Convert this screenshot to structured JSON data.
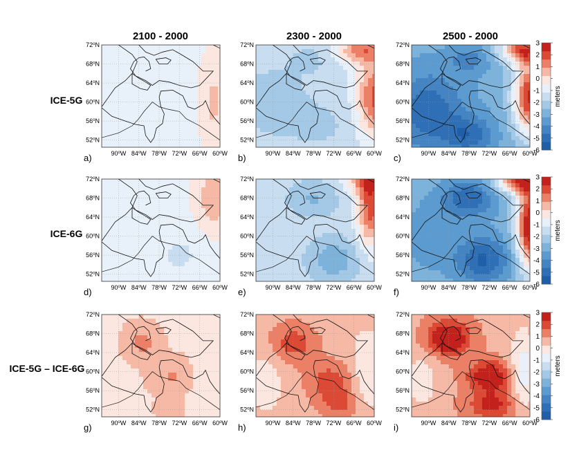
{
  "chart_data": {
    "type": "heatmap",
    "column_titles": [
      "2100 - 2000",
      "2300 - 2000",
      "2500 - 2000"
    ],
    "row_labels": [
      "ICE-5G",
      "ICE-6G",
      "ICE-5G – ICE-6G"
    ],
    "panel_labels": [
      "a)",
      "b)",
      "c)",
      "d)",
      "e)",
      "f)",
      "g)",
      "h)",
      "i)"
    ],
    "x_ticks": [
      {
        "main": "90",
        "sup": "o",
        "suffix": "W"
      },
      {
        "main": "84",
        "sup": "o",
        "suffix": "W"
      },
      {
        "main": "78",
        "sup": "o",
        "suffix": "W"
      },
      {
        "main": "72",
        "sup": "o",
        "suffix": "W"
      },
      {
        "main": "66",
        "sup": "o",
        "suffix": "W"
      },
      {
        "main": "60",
        "sup": "o",
        "suffix": "W"
      }
    ],
    "y_ticks": [
      {
        "main": "72",
        "sup": "o",
        "suffix": "N"
      },
      {
        "main": "68",
        "sup": "o",
        "suffix": "N"
      },
      {
        "main": "64",
        "sup": "o",
        "suffix": "N"
      },
      {
        "main": "60",
        "sup": "o",
        "suffix": "N"
      },
      {
        "main": "56",
        "sup": "o",
        "suffix": "N"
      },
      {
        "main": "52",
        "sup": "o",
        "suffix": "N"
      }
    ],
    "lon_range": [
      -95,
      -60
    ],
    "lat_range": [
      50.5,
      72
    ],
    "colorbar": {
      "label": "meters",
      "ticks": [
        "3",
        "2",
        "1",
        "0",
        "-1",
        "-2",
        "-3",
        "-4",
        "-5",
        "-6"
      ],
      "range": [
        -6,
        3
      ],
      "colors_low_to_high": [
        "#1f5fa8",
        "#2f6fb5",
        "#4484c2",
        "#5c9bcf",
        "#7db2db",
        "#a3c9e7",
        "#c8ddf0",
        "#e8f1f9",
        "#fbe7df",
        "#f6b9a6",
        "#ec8067",
        "#dc4a36",
        "#c2221b"
      ]
    },
    "series": [
      {
        "name": "ICE-5G",
        "panel": "a)",
        "base": -0.6,
        "blobs": [
          {
            "lon": -62,
            "lat": 60,
            "rx": 4,
            "ry": 9,
            "amp": 1.0
          },
          {
            "lon": -82,
            "lat": 58,
            "rx": 12,
            "ry": 9,
            "amp": -0.3
          }
        ]
      },
      {
        "name": "ICE-5G",
        "panel": "b)",
        "base": -1.4,
        "blobs": [
          {
            "lon": -90,
            "lat": 60,
            "rx": 10,
            "ry": 7,
            "amp": -1.0
          },
          {
            "lon": -76,
            "lat": 55,
            "rx": 9,
            "ry": 5,
            "amp": -0.6
          },
          {
            "lon": -79,
            "lat": 69,
            "rx": 7,
            "ry": 3.5,
            "amp": -0.6
          },
          {
            "lon": -60,
            "lat": 61,
            "rx": 5,
            "ry": 8,
            "amp": 3.2
          },
          {
            "lon": -64,
            "lat": 71,
            "rx": 7,
            "ry": 3,
            "amp": 2.6
          }
        ]
      },
      {
        "name": "ICE-5G",
        "panel": "c)",
        "base": -3.0,
        "blobs": [
          {
            "lon": -90,
            "lat": 58,
            "rx": 10,
            "ry": 8,
            "amp": -2.2
          },
          {
            "lon": -78,
            "lat": 53,
            "rx": 7,
            "ry": 4,
            "amp": -2.0
          },
          {
            "lon": -78,
            "lat": 69,
            "rx": 6,
            "ry": 3,
            "amp": -1.2
          },
          {
            "lon": -60,
            "lat": 61,
            "rx": 5,
            "ry": 8,
            "amp": 5.5
          },
          {
            "lon": -62,
            "lat": 71,
            "rx": 7,
            "ry": 3,
            "amp": 4.5
          }
        ]
      },
      {
        "name": "ICE-6G",
        "panel": "d)",
        "base": -0.5,
        "blobs": [
          {
            "lon": -72,
            "lat": 56,
            "rx": 8,
            "ry": 5,
            "amp": -0.8
          },
          {
            "lon": -62,
            "lat": 68,
            "rx": 4,
            "ry": 6,
            "amp": 1.4
          }
        ]
      },
      {
        "name": "ICE-6G",
        "panel": "e)",
        "base": -1.4,
        "blobs": [
          {
            "lon": -72,
            "lat": 55,
            "rx": 8,
            "ry": 5,
            "amp": -1.6
          },
          {
            "lon": -78,
            "lat": 68,
            "rx": 8,
            "ry": 4,
            "amp": -1.2
          },
          {
            "lon": -61,
            "lat": 66,
            "rx": 4,
            "ry": 8,
            "amp": 3.4
          },
          {
            "lon": -62,
            "lat": 72,
            "rx": 6,
            "ry": 3,
            "amp": 2.4
          }
        ]
      },
      {
        "name": "ICE-6G",
        "panel": "f)",
        "base": -2.8,
        "blobs": [
          {
            "lon": -74,
            "lat": 55,
            "rx": 8,
            "ry": 5,
            "amp": -2.6
          },
          {
            "lon": -78,
            "lat": 68,
            "rx": 8,
            "ry": 4,
            "amp": -2.4
          },
          {
            "lon": -90,
            "lat": 60,
            "rx": 8,
            "ry": 8,
            "amp": -0.8
          },
          {
            "lon": -60,
            "lat": 62,
            "rx": 4,
            "ry": 9,
            "amp": 6.0
          },
          {
            "lon": -63,
            "lat": 72,
            "rx": 7,
            "ry": 3,
            "amp": 5.0
          }
        ]
      },
      {
        "name": "ICE-5G – ICE-6G",
        "panel": "g)",
        "base": 0.2,
        "blobs": [
          {
            "lon": -83,
            "lat": 66,
            "rx": 4,
            "ry": 3,
            "amp": 1.0
          },
          {
            "lon": -74,
            "lat": 59,
            "rx": 5,
            "ry": 3,
            "amp": 0.8
          },
          {
            "lon": -62,
            "lat": 58,
            "rx": 5,
            "ry": 6,
            "amp": -0.6
          },
          {
            "lon": -75,
            "lat": 52,
            "rx": 3,
            "ry": 2,
            "amp": 0.5
          }
        ]
      },
      {
        "name": "ICE-5G – ICE-6G",
        "panel": "h)",
        "base": 0.6,
        "blobs": [
          {
            "lon": -84,
            "lat": 66,
            "rx": 7,
            "ry": 4,
            "amp": 1.4
          },
          {
            "lon": -73,
            "lat": 58,
            "rx": 7,
            "ry": 4,
            "amp": 1.4
          },
          {
            "lon": -92,
            "lat": 58,
            "rx": 5,
            "ry": 7,
            "amp": -0.8
          },
          {
            "lon": -62,
            "lat": 60,
            "rx": 5,
            "ry": 9,
            "amp": -1.0
          },
          {
            "lon": -70,
            "lat": 53,
            "rx": 6,
            "ry": 3,
            "amp": 1.2
          }
        ]
      },
      {
        "name": "ICE-5G – ICE-6G",
        "panel": "i)",
        "base": 0.8,
        "blobs": [
          {
            "lon": -84,
            "lat": 67,
            "rx": 6,
            "ry": 3.5,
            "amp": 2.8
          },
          {
            "lon": -72,
            "lat": 59,
            "rx": 6,
            "ry": 3,
            "amp": 2.6
          },
          {
            "lon": -71,
            "lat": 53,
            "rx": 7,
            "ry": 3,
            "amp": 1.8
          },
          {
            "lon": -62,
            "lat": 60,
            "rx": 4,
            "ry": 9,
            "amp": -1.6
          },
          {
            "lon": -92,
            "lat": 58,
            "rx": 5,
            "ry": 6,
            "amp": -1.0
          }
        ]
      }
    ]
  }
}
